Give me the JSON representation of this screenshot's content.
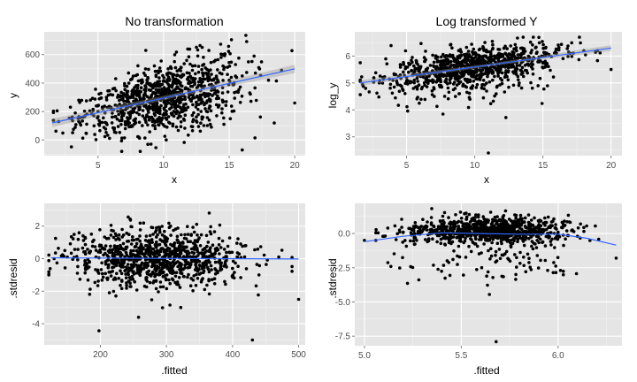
{
  "chart_data": [
    {
      "type": "scatter",
      "title": "No transformation",
      "xlabel": "x",
      "ylabel": "y",
      "xlim": [
        0.9,
        20.8
      ],
      "ylim": [
        -110,
        760
      ],
      "xticks": [
        5,
        10,
        15,
        20
      ],
      "yticks": [
        0,
        200,
        400,
        600
      ],
      "grid": true,
      "points_desc": "approx. 1000 observations; cloud centered near x=10, y=300",
      "sample_points": [
        [
          2,
          130
        ],
        [
          3,
          150
        ],
        [
          4,
          170
        ],
        [
          5,
          200
        ],
        [
          6,
          230
        ],
        [
          7,
          250
        ],
        [
          8,
          270
        ],
        [
          9,
          290
        ],
        [
          10,
          310
        ],
        [
          11,
          330
        ],
        [
          12,
          350
        ],
        [
          13,
          370
        ],
        [
          14,
          400
        ],
        [
          15,
          420
        ],
        [
          16,
          450
        ],
        [
          17,
          470
        ],
        [
          18,
          420
        ],
        [
          19,
          490
        ],
        [
          20,
          260
        ],
        [
          16,
          -70
        ]
      ],
      "fit_line": {
        "x": [
          1.5,
          20
        ],
        "y": [
          120,
          500
        ],
        "color": "#3366FF"
      }
    },
    {
      "type": "scatter",
      "title": "Log transformed Y",
      "xlabel": "x",
      "ylabel": "log_y",
      "xlim": [
        1.2,
        20.8
      ],
      "ylim": [
        2.3,
        6.9
      ],
      "xticks": [
        5,
        10,
        15,
        20
      ],
      "yticks": [
        3,
        4,
        5,
        6
      ],
      "grid": true,
      "sample_points": [
        [
          2,
          4.8
        ],
        [
          3,
          5.0
        ],
        [
          4,
          5.1
        ],
        [
          5,
          5.2
        ],
        [
          6,
          5.3
        ],
        [
          7,
          5.4
        ],
        [
          8,
          5.5
        ],
        [
          9,
          5.55
        ],
        [
          10,
          5.65
        ],
        [
          11,
          5.7
        ],
        [
          12,
          5.8
        ],
        [
          13,
          5.9
        ],
        [
          14,
          5.95
        ],
        [
          15,
          6.0
        ],
        [
          16,
          6.1
        ],
        [
          17,
          6.1
        ],
        [
          18,
          6.2
        ],
        [
          19,
          6.2
        ],
        [
          20,
          5.5
        ],
        [
          11,
          2.4
        ]
      ],
      "fit_line": {
        "x": [
          1.6,
          20
        ],
        "y": [
          5.0,
          6.3
        ],
        "color": "#3366FF"
      }
    },
    {
      "type": "scatter",
      "title": "",
      "xlabel": ".fitted",
      "ylabel": ".stdresid",
      "xlim": [
        115,
        510
      ],
      "ylim": [
        -5.3,
        3.4
      ],
      "xticks": [
        200,
        300,
        400,
        500
      ],
      "yticks": [
        -4,
        -2,
        0,
        2
      ],
      "grid": true,
      "sample_points": [
        [
          130,
          0
        ],
        [
          150,
          0.1
        ],
        [
          180,
          -0.3
        ],
        [
          200,
          0.4
        ],
        [
          220,
          0.2
        ],
        [
          250,
          -0.5
        ],
        [
          280,
          0.6
        ],
        [
          300,
          -0.2
        ],
        [
          320,
          0.5
        ],
        [
          350,
          -0.4
        ],
        [
          380,
          0.3
        ],
        [
          400,
          -0.6
        ],
        [
          420,
          0.8
        ],
        [
          440,
          -1.0
        ],
        [
          470,
          0.1
        ],
        [
          500,
          -2.5
        ],
        [
          430,
          -5.0
        ]
      ],
      "fit_line": {
        "x": [
          125,
          500
        ],
        "y": [
          0.05,
          -0.02
        ],
        "color": "#3366FF"
      }
    },
    {
      "type": "scatter",
      "title": "",
      "xlabel": ".fitted",
      "ylabel": ".stdresid",
      "xlim": [
        4.95,
        6.33
      ],
      "ylim": [
        -8.2,
        2.2
      ],
      "xticks": [
        5.0,
        5.5,
        6.0
      ],
      "yticks": [
        -7.5,
        -5.0,
        -2.5,
        0.0
      ],
      "grid": true,
      "sample_points": [
        [
          5.0,
          -0.5
        ],
        [
          5.1,
          -0.2
        ],
        [
          5.2,
          0.1
        ],
        [
          5.3,
          0.2
        ],
        [
          5.4,
          0.0
        ],
        [
          5.5,
          0.3
        ],
        [
          5.6,
          -0.3
        ],
        [
          5.7,
          0.2
        ],
        [
          5.8,
          -0.1
        ],
        [
          5.9,
          0.3
        ],
        [
          6.0,
          0.1
        ],
        [
          6.1,
          -0.2
        ],
        [
          6.3,
          -1.8
        ],
        [
          5.68,
          -7.9
        ]
      ],
      "fit_line_x": [
        5.0,
        5.2,
        5.4,
        5.6,
        5.8,
        6.0,
        6.15,
        6.3
      ],
      "fit_line_y": [
        -0.6,
        -0.2,
        0.05,
        0.0,
        -0.05,
        -0.05,
        -0.35,
        -0.85
      ],
      "fit_color": "#3366FF"
    }
  ]
}
